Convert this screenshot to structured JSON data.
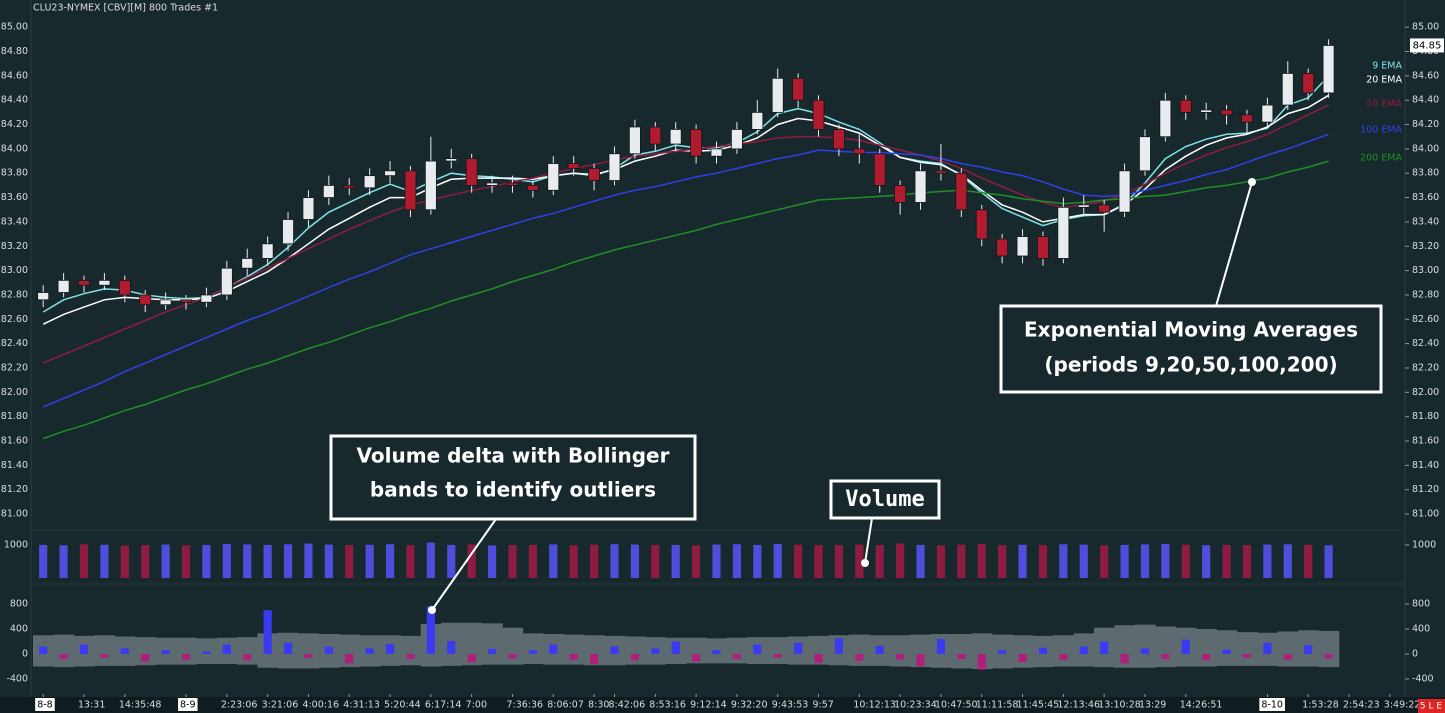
{
  "chart_data": [
    {
      "type": "candlestick",
      "title": "CLU23-NYMEX [CBV][M]  800 Trades  #1",
      "categories": [
        "8-8",
        null,
        "13:31",
        null,
        "14:35:48",
        null,
        null,
        "8-9",
        null,
        "2:23:06",
        null,
        "3:21:06",
        null,
        "4:00:16",
        null,
        "4:31:13",
        null,
        "5:20:44",
        null,
        "6:17:14",
        null,
        "7:00",
        null,
        "7:36:36",
        null,
        "8:06:07",
        null,
        "8:30",
        "8:42:06",
        null,
        "8:53:16",
        null,
        "9:12:14",
        null,
        "9:32:20",
        null,
        "9:43:53",
        null,
        "9:57",
        null,
        "10:12:13",
        null,
        "10:23:34",
        null,
        "10:47:50",
        null,
        "11:11:58",
        null,
        "11:45:45",
        null,
        "12:13:46",
        null,
        "13:10:28",
        null,
        "13:29",
        null,
        "14:26:51",
        null,
        null,
        null,
        "8-10",
        null,
        "1:53:28",
        null,
        "2:54:23",
        null,
        "3:49:22"
      ],
      "open": [
        82.76,
        82.82,
        82.92,
        82.88,
        82.92,
        82.8,
        82.72,
        82.76,
        82.74,
        82.8,
        83.02,
        83.1,
        83.22,
        83.42,
        83.6,
        83.7,
        83.68,
        83.78,
        83.82,
        83.5,
        83.9,
        83.92,
        83.7,
        83.72,
        83.7,
        83.66,
        83.88,
        83.84,
        83.74,
        83.96,
        84.18,
        84.04,
        84.16,
        83.94,
        84.0,
        84.16,
        84.3,
        84.58,
        84.4,
        84.16,
        84.0,
        83.96,
        83.7,
        83.56,
        83.82,
        83.8,
        83.5,
        83.26,
        83.12,
        83.28,
        83.1,
        83.52,
        83.54,
        83.48,
        83.82,
        84.1,
        84.4,
        84.3,
        84.32,
        84.28,
        84.22,
        84.36,
        84.62,
        84.46,
        null,
        null,
        null
      ],
      "high": [
        82.88,
        82.98,
        82.96,
        82.98,
        82.96,
        82.84,
        82.82,
        82.8,
        82.86,
        83.08,
        83.18,
        83.28,
        83.48,
        83.66,
        83.78,
        83.76,
        83.84,
        83.9,
        83.86,
        84.1,
        84.0,
        83.96,
        83.78,
        83.78,
        83.74,
        83.94,
        83.94,
        83.88,
        84.02,
        84.24,
        84.22,
        84.22,
        84.2,
        84.06,
        84.22,
        84.4,
        84.66,
        84.62,
        84.44,
        84.2,
        84.12,
        84.0,
        83.74,
        83.88,
        84.04,
        83.84,
        83.54,
        83.3,
        83.34,
        83.32,
        83.6,
        83.62,
        83.58,
        83.88,
        84.16,
        84.46,
        84.44,
        84.38,
        84.36,
        84.32,
        84.42,
        84.72,
        84.66,
        84.9,
        null,
        null,
        null
      ],
      "low": [
        82.7,
        82.78,
        82.82,
        82.84,
        82.74,
        82.66,
        82.68,
        82.68,
        82.7,
        82.76,
        82.96,
        83.04,
        83.16,
        83.36,
        83.54,
        83.62,
        83.62,
        83.72,
        83.44,
        83.46,
        83.84,
        83.64,
        83.64,
        83.64,
        83.6,
        83.62,
        83.78,
        83.66,
        83.7,
        83.92,
        83.98,
        83.98,
        83.88,
        83.88,
        83.96,
        84.12,
        84.26,
        84.34,
        84.1,
        83.94,
        83.88,
        83.64,
        83.46,
        83.5,
        83.74,
        83.44,
        83.2,
        83.06,
        83.06,
        83.04,
        83.06,
        83.46,
        83.32,
        83.44,
        83.78,
        84.06,
        84.24,
        84.24,
        84.2,
        84.12,
        84.18,
        84.32,
        84.4,
        84.42,
        null,
        null,
        null
      ],
      "close": [
        82.82,
        82.92,
        82.88,
        82.92,
        82.8,
        82.72,
        82.76,
        82.74,
        82.8,
        83.02,
        83.1,
        83.22,
        83.42,
        83.6,
        83.7,
        83.68,
        83.78,
        83.82,
        83.5,
        83.9,
        83.92,
        83.7,
        83.72,
        83.7,
        83.66,
        83.88,
        83.84,
        83.74,
        83.96,
        84.18,
        84.04,
        84.16,
        83.94,
        84.0,
        84.16,
        84.3,
        84.58,
        84.4,
        84.16,
        84.0,
        83.96,
        83.7,
        83.56,
        83.82,
        83.8,
        83.5,
        83.26,
        83.12,
        83.28,
        83.1,
        83.52,
        83.54,
        83.48,
        83.82,
        84.1,
        84.4,
        84.3,
        84.32,
        84.28,
        84.22,
        84.36,
        84.62,
        84.46,
        84.85,
        null,
        null,
        null
      ],
      "up_color": "#e8ecef",
      "down_color": "#b01c2e",
      "series": [
        {
          "name": "9 EMA",
          "color": "#7fe3e6",
          "values": [
            82.66,
            82.76,
            82.81,
            82.85,
            82.84,
            82.8,
            82.78,
            82.77,
            82.78,
            82.86,
            82.95,
            83.05,
            83.19,
            83.35,
            83.48,
            83.56,
            83.64,
            83.71,
            83.65,
            83.73,
            83.8,
            83.78,
            83.77,
            83.75,
            83.73,
            83.78,
            83.8,
            83.78,
            83.84,
            83.95,
            83.98,
            84.03,
            84.01,
            84.01,
            84.05,
            84.14,
            84.29,
            84.33,
            84.29,
            84.22,
            84.16,
            84.05,
            83.93,
            83.9,
            83.88,
            83.78,
            83.64,
            83.51,
            83.44,
            83.37,
            83.42,
            83.45,
            83.46,
            83.55,
            83.72,
            83.92,
            84.02,
            84.08,
            84.12,
            84.13,
            84.17,
            84.36,
            84.42,
            84.6,
            null,
            null,
            null
          ]
        },
        {
          "name": "20 EMA",
          "color": "#ffffff",
          "values": [
            82.56,
            82.64,
            82.7,
            82.76,
            82.78,
            82.77,
            82.76,
            82.76,
            82.77,
            82.83,
            82.91,
            82.99,
            83.1,
            83.22,
            83.34,
            83.43,
            83.52,
            83.6,
            83.6,
            83.68,
            83.75,
            83.76,
            83.76,
            83.76,
            83.75,
            83.78,
            83.8,
            83.79,
            83.83,
            83.9,
            83.94,
            83.99,
            83.98,
            83.99,
            84.03,
            84.09,
            84.2,
            84.25,
            84.23,
            84.18,
            84.13,
            84.03,
            83.93,
            83.89,
            83.87,
            83.79,
            83.66,
            83.54,
            83.48,
            83.4,
            83.43,
            83.46,
            83.46,
            83.54,
            83.67,
            83.83,
            83.94,
            84.03,
            84.09,
            84.12,
            84.18,
            84.29,
            84.34,
            84.44,
            null,
            null,
            null
          ]
        },
        {
          "name": "50 EMA",
          "color": "#8e1c3e",
          "values": [
            82.24,
            82.31,
            82.38,
            82.45,
            82.52,
            82.59,
            82.66,
            82.72,
            82.78,
            82.86,
            82.94,
            83.02,
            83.1,
            83.18,
            83.26,
            83.34,
            83.41,
            83.48,
            83.54,
            83.58,
            83.62,
            83.66,
            83.69,
            83.73,
            83.76,
            83.8,
            83.84,
            83.87,
            83.91,
            83.94,
            83.96,
            83.98,
            84.0,
            84.02,
            84.04,
            84.06,
            84.09,
            84.1,
            84.1,
            84.09,
            84.07,
            84.03,
            83.99,
            83.95,
            83.9,
            83.84,
            83.76,
            83.69,
            83.62,
            83.56,
            83.52,
            83.54,
            83.57,
            83.63,
            83.71,
            83.8,
            83.88,
            83.95,
            84.01,
            84.06,
            84.12,
            84.2,
            84.28,
            84.36,
            null,
            null,
            null
          ]
        },
        {
          "name": "100 EMA",
          "color": "#3040e8",
          "values": [
            81.88,
            81.95,
            82.02,
            82.09,
            82.17,
            82.24,
            82.31,
            82.38,
            82.45,
            82.52,
            82.59,
            82.65,
            82.72,
            82.79,
            82.86,
            82.93,
            82.99,
            83.06,
            83.13,
            83.18,
            83.23,
            83.28,
            83.33,
            83.38,
            83.43,
            83.47,
            83.52,
            83.57,
            83.62,
            83.66,
            83.69,
            83.73,
            83.77,
            83.8,
            83.84,
            83.88,
            83.92,
            83.95,
            83.99,
            83.98,
            83.97,
            83.97,
            83.96,
            83.95,
            83.92,
            83.88,
            83.85,
            83.81,
            83.78,
            83.73,
            83.67,
            83.62,
            83.61,
            83.62,
            83.66,
            83.7,
            83.74,
            83.79,
            83.83,
            83.89,
            83.95,
            84.0,
            84.06,
            84.12,
            null,
            null,
            null
          ]
        },
        {
          "name": "200 EMA",
          "color": "#1f8f24",
          "values": [
            81.62,
            81.68,
            81.73,
            81.79,
            81.85,
            81.9,
            81.96,
            82.02,
            82.07,
            82.13,
            82.19,
            82.24,
            82.3,
            82.36,
            82.41,
            82.47,
            82.53,
            82.58,
            82.64,
            82.69,
            82.75,
            82.8,
            82.85,
            82.91,
            82.96,
            83.01,
            83.07,
            83.12,
            83.17,
            83.21,
            83.25,
            83.29,
            83.33,
            83.38,
            83.42,
            83.46,
            83.5,
            83.54,
            83.58,
            83.59,
            83.6,
            83.61,
            83.62,
            83.64,
            83.65,
            83.66,
            83.64,
            83.62,
            83.59,
            83.57,
            83.55,
            83.56,
            83.58,
            83.59,
            83.61,
            83.62,
            83.65,
            83.68,
            83.7,
            83.73,
            83.76,
            83.81,
            83.85,
            83.9,
            null,
            null,
            null
          ]
        }
      ],
      "ylim": [
        80.91,
        85.1
      ],
      "yticks": [
        {
          "value": 81,
          "label": "81.00"
        },
        {
          "value": 81.2,
          "label": "81.20"
        },
        {
          "value": 81.4,
          "label": "81.40"
        },
        {
          "value": 81.6,
          "label": "81.60"
        },
        {
          "value": 81.8,
          "label": "81.80"
        },
        {
          "value": 82,
          "label": "82.00"
        },
        {
          "value": 82.2,
          "label": "82.20"
        },
        {
          "value": 82.4,
          "label": "82.40"
        },
        {
          "value": 82.6,
          "label": "82.60"
        },
        {
          "value": 82.8,
          "label": "82.80"
        },
        {
          "value": 83,
          "label": "83.00"
        },
        {
          "value": 83.2,
          "label": "83.20"
        },
        {
          "value": 83.4,
          "label": "83.40"
        },
        {
          "value": 83.6,
          "label": "83.60"
        },
        {
          "value": 83.8,
          "label": "83.80"
        },
        {
          "value": 84,
          "label": "84.00"
        },
        {
          "value": 84.2,
          "label": "84.20"
        },
        {
          "value": 84.4,
          "label": "84.40"
        },
        {
          "value": 84.6,
          "label": "84.60"
        },
        {
          "value": 84.8,
          "label": "84.80"
        },
        {
          "value": 85,
          "label": "85.00"
        }
      ]
    },
    {
      "type": "bar",
      "values": [
        1000,
        990,
        1020,
        1005,
        980,
        995,
        1010,
        985,
        1000,
        1030,
        1015,
        1000,
        1020,
        1040,
        1010,
        995,
        1005,
        1020,
        990,
        1070,
        1000,
        1010,
        985,
        995,
        1000,
        1015,
        990,
        1005,
        1020,
        1010,
        995,
        1000,
        985,
        1010,
        1020,
        1000,
        1030,
        1005,
        990,
        1000,
        1010,
        995,
        1040,
        1000,
        985,
        1010,
        1030,
        995,
        1005,
        990,
        1020,
        1010,
        985,
        1000,
        1015,
        1030,
        1005,
        990,
        1000,
        995,
        1010,
        1020,
        1005,
        990,
        null,
        null,
        null
      ],
      "up_color": "#4d4fdc",
      "down_color": "#8e1c42",
      "ylim": [
        0,
        1300
      ],
      "yticks": [
        1000
      ]
    },
    {
      "type": "bar",
      "values": [
        120,
        -80,
        150,
        -60,
        90,
        -120,
        60,
        -90,
        40,
        150,
        -100,
        700,
        180,
        -60,
        120,
        -150,
        90,
        160,
        -80,
        760,
        210,
        -130,
        80,
        -70,
        60,
        150,
        -90,
        -160,
        120,
        -100,
        90,
        200,
        -120,
        60,
        -80,
        150,
        -60,
        180,
        -140,
        250,
        -110,
        130,
        -90,
        -200,
        240,
        -80,
        -250,
        60,
        -130,
        100,
        -90,
        120,
        200,
        -150,
        90,
        -80,
        230,
        -100,
        70,
        -60,
        180,
        -90,
        140,
        -70,
        null,
        null,
        null
      ],
      "positive_color": "#3a3af0",
      "negative_color": "#b0207a",
      "band": {
        "color": "#5d6b70",
        "upper": [
          300,
          310,
          290,
          300,
          280,
          270,
          260,
          260,
          250,
          260,
          270,
          330,
          340,
          330,
          320,
          310,
          300,
          300,
          290,
          480,
          500,
          500,
          490,
          420,
          330,
          320,
          310,
          300,
          290,
          280,
          270,
          260,
          260,
          250,
          260,
          270,
          270,
          280,
          290,
          300,
          310,
          300,
          300,
          310,
          320,
          320,
          330,
          310,
          300,
          290,
          300,
          330,
          420,
          460,
          470,
          440,
          420,
          400,
          380,
          350,
          340,
          360,
          380,
          370,
          null,
          null,
          null
        ],
        "lower": [
          -200,
          -210,
          -200,
          -190,
          -190,
          -180,
          -170,
          -170,
          -160,
          -160,
          -170,
          -220,
          -230,
          -230,
          -220,
          -210,
          -200,
          -190,
          -180,
          -200,
          -190,
          -180,
          -170,
          -170,
          -160,
          -170,
          -170,
          -180,
          -180,
          -170,
          -170,
          -160,
          -150,
          -150,
          -150,
          -160,
          -160,
          -170,
          -170,
          -180,
          -190,
          -190,
          -200,
          -210,
          -220,
          -230,
          -240,
          -230,
          -220,
          -210,
          -200,
          -200,
          -210,
          -220,
          -220,
          -210,
          -200,
          -200,
          -190,
          -190,
          -190,
          -200,
          -200,
          -210,
          null,
          null,
          null
        ]
      },
      "ylim": [
        -576,
        1024
      ],
      "yticks": [
        800,
        400,
        0,
        -400
      ]
    }
  ],
  "annotations": [
    {
      "lines": [
        "Exponential Moving Averages",
        "(periods 9,20,50,100,200)"
      ]
    },
    {
      "lines": [
        "Volume delta with Bollinger",
        "bands to identify outliers"
      ]
    },
    {
      "lines": [
        "Volume"
      ]
    }
  ],
  "status": "5 L E"
}
